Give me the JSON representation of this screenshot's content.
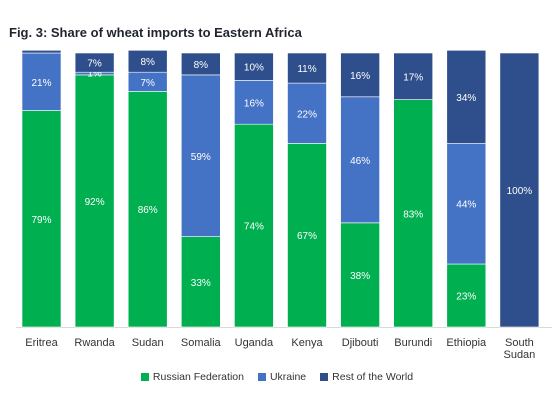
{
  "chart_data": {
    "type": "bar",
    "stacked": true,
    "orientation": "vertical",
    "title": "Fig. 3: Share of wheat imports to Eastern Africa",
    "categories": [
      "Eritrea",
      "Rwanda",
      "Sudan",
      "Somalia",
      "Uganda",
      "Kenya",
      "Djibouti",
      "Burundi",
      "Ethiopia",
      "South Sudan"
    ],
    "series": [
      {
        "name": "Russian Federation",
        "color": "#00b050",
        "values": [
          79,
          92,
          86,
          33,
          74,
          67,
          38,
          83,
          23,
          0
        ],
        "labels": [
          "79%",
          "92%",
          "86%",
          "33%",
          "74%",
          "67%",
          "38%",
          "83%",
          "23%",
          ""
        ]
      },
      {
        "name": "Ukraine",
        "color": "#4472c4",
        "values": [
          21,
          1,
          7,
          59,
          16,
          22,
          46,
          0,
          44,
          0
        ],
        "labels": [
          "21%",
          "1%",
          "7%",
          "59%",
          "16%",
          "22%",
          "46%",
          "",
          "44%",
          ""
        ]
      },
      {
        "name": "Rest of the World",
        "color": "#2f4e8c",
        "values": [
          1,
          7,
          8,
          8,
          10,
          11,
          16,
          17,
          34,
          100
        ],
        "labels": [
          "",
          "7%",
          "8%",
          "8%",
          "10%",
          "11%",
          "16%",
          "17%",
          "34%",
          "100%"
        ]
      }
    ],
    "ylim": [
      0,
      100
    ],
    "grid": false,
    "legend_position": "bottom"
  }
}
